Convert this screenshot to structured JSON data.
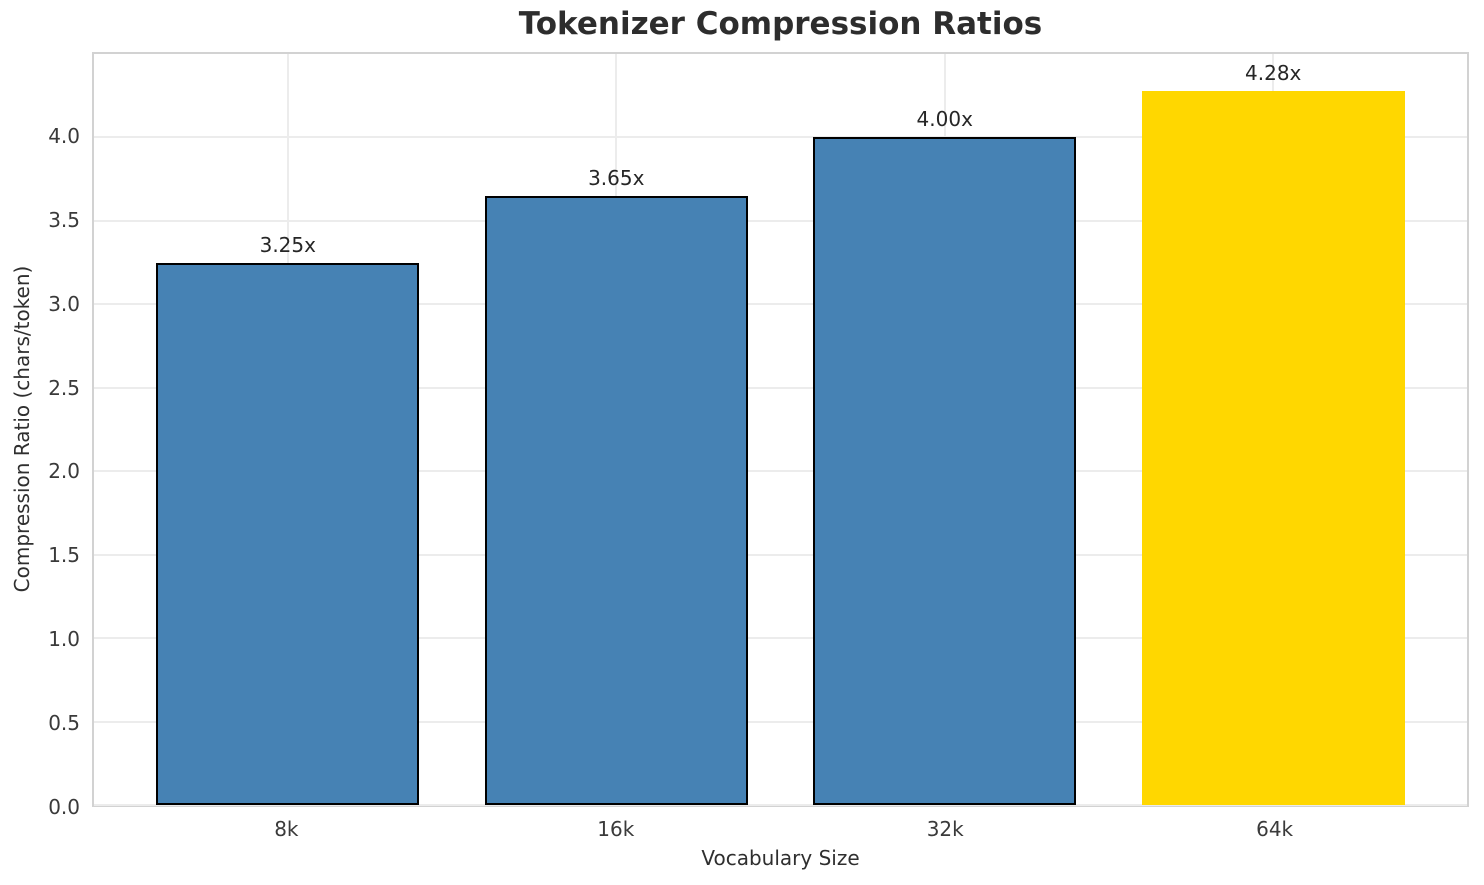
{
  "chart_data": {
    "type": "bar",
    "title": "Tokenizer Compression Ratios",
    "xlabel": "Vocabulary Size",
    "ylabel": "Compression Ratio (chars/token)",
    "categories": [
      "8k",
      "16k",
      "32k",
      "64k"
    ],
    "values": [
      3.25,
      3.65,
      4.0,
      4.28
    ],
    "bar_labels": [
      "3.25x",
      "3.65x",
      "4.00x",
      "4.28x"
    ],
    "bar_colors": [
      "#4682B4",
      "#4682B4",
      "#4682B4",
      "#FFD700"
    ],
    "bar_edge_colors": [
      "#000000",
      "#000000",
      "#000000",
      null
    ],
    "ylim": [
      0,
      4.5
    ],
    "yticks": [
      0,
      0.5,
      1,
      1.5,
      2,
      2.5,
      3,
      3.5,
      4
    ],
    "ytick_labels": [
      "0.0",
      "0.5",
      "1.0",
      "1.5",
      "2.0",
      "2.5",
      "3.0",
      "3.5",
      "4.0"
    ],
    "grid": true,
    "legend_position": "none"
  },
  "theme": {
    "accent_blue": "#4682B4",
    "highlight_gold": "#FFD700",
    "grid_color": "#ececec",
    "spine_color": "#d2d2d2",
    "title_color": "#2d2d2d",
    "tick_color": "#3a3a3a"
  }
}
